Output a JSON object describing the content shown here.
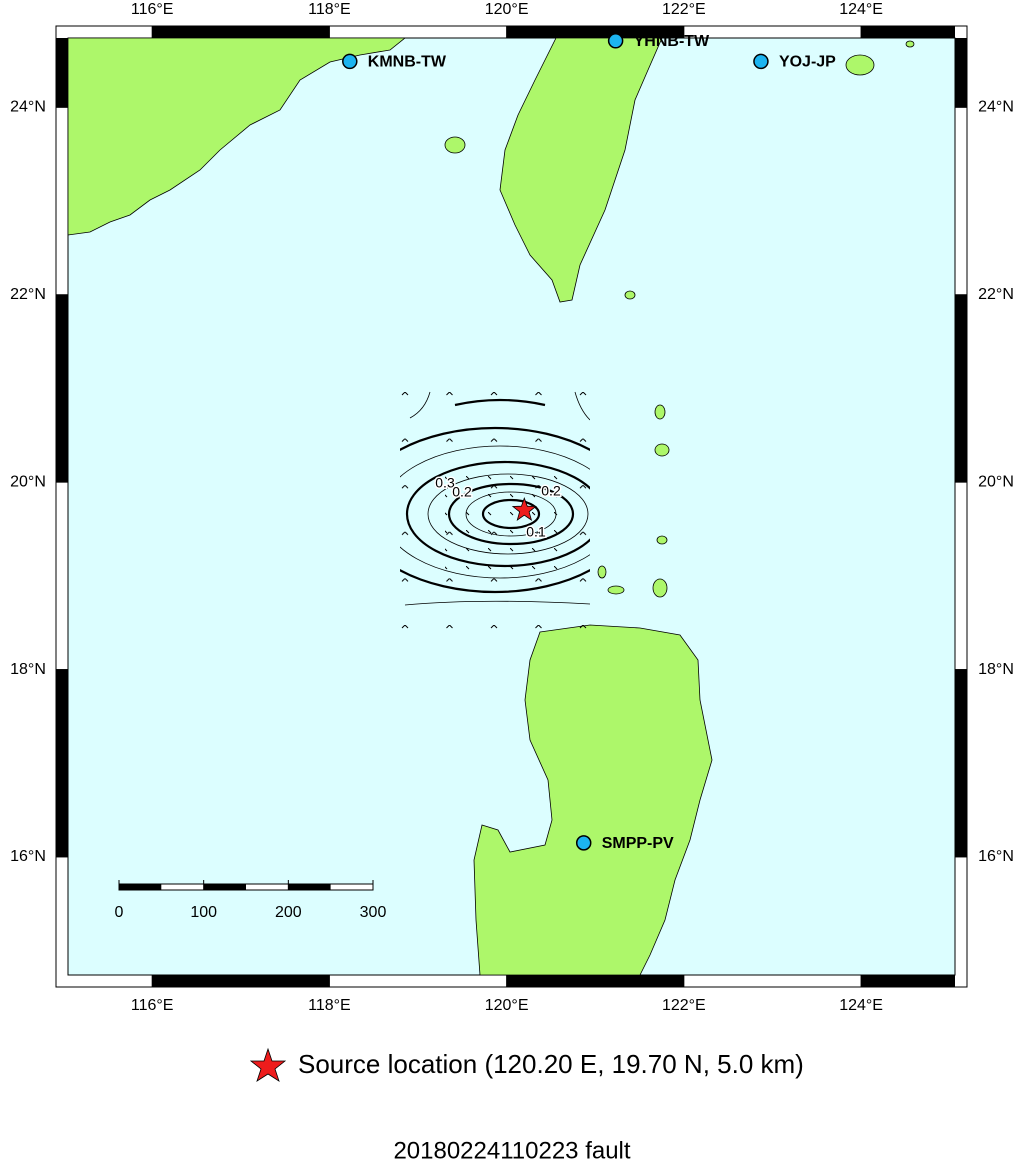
{
  "map": {
    "xlim": [
      115.05,
      125.06
    ],
    "ylim": [
      14.74,
      24.74
    ],
    "xticks": [
      {
        "value": 116,
        "label": "116°E"
      },
      {
        "value": 118,
        "label": "118°E"
      },
      {
        "value": 120,
        "label": "120°E"
      },
      {
        "value": 122,
        "label": "122°E"
      },
      {
        "value": 124,
        "label": "124°E"
      }
    ],
    "yticks": [
      {
        "value": 16,
        "label": "16°N"
      },
      {
        "value": 18,
        "label": "18°N"
      },
      {
        "value": 20,
        "label": "20°N"
      },
      {
        "value": 22,
        "label": "22°N"
      },
      {
        "value": 24,
        "label": "24°N"
      }
    ],
    "stations": [
      {
        "name": "KMNB-TW",
        "lon": 118.23,
        "lat": 24.49
      },
      {
        "name": "YHNB-TW",
        "lon": 121.23,
        "lat": 24.71
      },
      {
        "name": "YOJ-JP",
        "lon": 122.87,
        "lat": 24.49
      },
      {
        "name": "SMPP-PV",
        "lon": 120.87,
        "lat": 16.15
      }
    ],
    "source": {
      "lon": 120.2,
      "lat": 19.7
    },
    "contour_labels": [
      0.3,
      0.2,
      0.2,
      0.1
    ],
    "scale_bar": {
      "ticks": [
        0,
        100,
        200,
        300
      ]
    },
    "legend": "Source location (120.20 E, 19.70 N, 5.0 km)",
    "title": "20180224110223 fault"
  }
}
